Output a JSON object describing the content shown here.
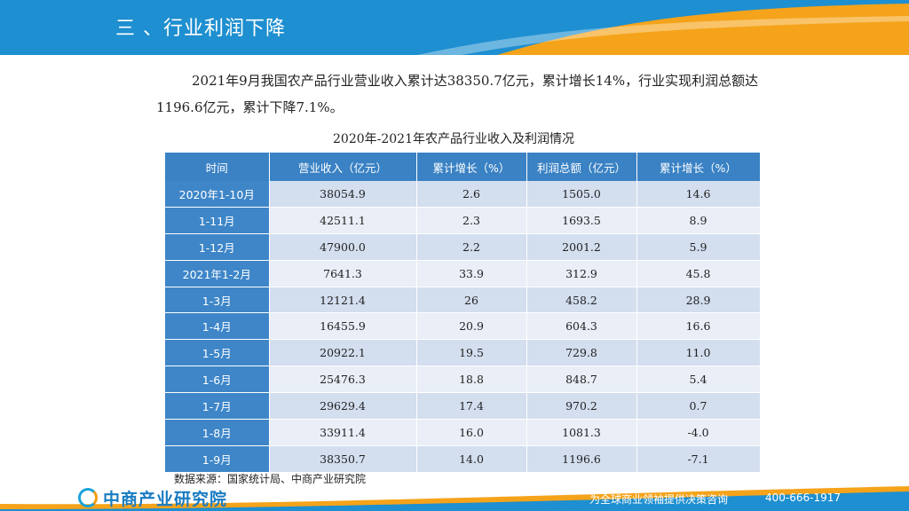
{
  "header": {
    "title": "三 、行业利润下降"
  },
  "intro": {
    "text": "2021年9月我国农产品行业营业收入累计达38350.7亿元，累计增长14%，行业实现利润总额达1196.6亿元，累计下降7.1%。"
  },
  "table": {
    "caption": "2020年-2021年农产品行业收入及利润情况",
    "headers": [
      "时间",
      "营业收入（亿元）",
      "累计增长（%）",
      "利润总额（亿元）",
      "累计增长（%）"
    ],
    "rows": [
      [
        "2020年1-10月",
        "38054.9",
        "2.6",
        "1505.0",
        "14.6"
      ],
      [
        "1-11月",
        "42511.1",
        "2.3",
        "1693.5",
        "8.9"
      ],
      [
        "1-12月",
        "47900.0",
        "2.2",
        "2001.2",
        "5.9"
      ],
      [
        "2021年1-2月",
        "7641.3",
        "33.9",
        "312.9",
        "45.8"
      ],
      [
        "1-3月",
        "12121.4",
        "26",
        "458.2",
        "28.9"
      ],
      [
        "1-4月",
        "16455.9",
        "20.9",
        "604.3",
        "16.6"
      ],
      [
        "1-5月",
        "20922.1",
        "19.5",
        "729.8",
        "11.0"
      ],
      [
        "1-6月",
        "25476.3",
        "18.8",
        "848.7",
        "5.4"
      ],
      [
        "1-7月",
        "29629.4",
        "17.4",
        "970.2",
        "0.7"
      ],
      [
        "1-8月",
        "33911.4",
        "16.0",
        "1081.3",
        "-4.0"
      ],
      [
        "1-9月",
        "38350.7",
        "14.0",
        "1196.6",
        "-7.1"
      ]
    ]
  },
  "source": "数据来源：国家统计局、中商产业研究院",
  "footer": {
    "logo_text": "中商产业研究院",
    "slogan": "为全球商业领袖提供决策咨询",
    "phone": "400-666-1917"
  },
  "colors": {
    "primary_blue": "#1e8fd0",
    "accent_orange": "#f5a31a",
    "header_row": "#3a82c4",
    "row_light": "#e9eef7",
    "row_dark": "#d3deef"
  }
}
